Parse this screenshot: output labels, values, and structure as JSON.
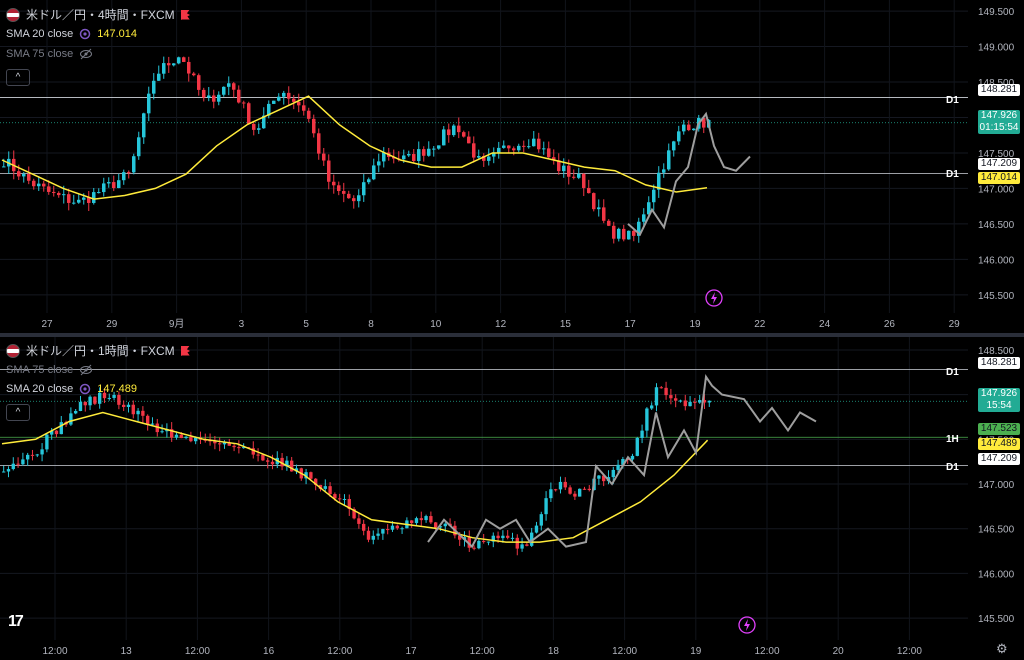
{
  "top_pane": {
    "symbol": "米ドル／円・4時間・FXCM",
    "indicators": [
      {
        "label": "SMA 20 close",
        "value": "147.014",
        "icon": "source-link-icon",
        "color": "#7e57c2"
      },
      {
        "label": "SMA 75 close",
        "value": "",
        "icon": "eye-hidden-icon",
        "color": "#787b86"
      }
    ],
    "collapse_label": "^",
    "y_axis": {
      "ticks": [
        "149.500",
        "149.000",
        "148.500",
        "148.000",
        "147.500",
        "147.000",
        "146.500",
        "146.000",
        "145.500"
      ],
      "range": [
        145.3,
        149.6
      ]
    },
    "x_axis": {
      "ticks": [
        "27",
        "29",
        "9月",
        "3",
        "5",
        "8",
        "10",
        "12",
        "15",
        "17",
        "19",
        "22",
        "24",
        "26",
        "29"
      ]
    },
    "price_tags": [
      {
        "text": "148.281",
        "bg": "#ffffff",
        "fg": "#131722"
      },
      {
        "text": "147.926",
        "sub": "01:15:54",
        "bg": "#22ab94",
        "fg": "#ffffff"
      },
      {
        "text": "147.209",
        "bg": "#ffffff",
        "fg": "#131722"
      },
      {
        "text": "147.014",
        "bg": "#ffeb3b",
        "fg": "#131722"
      }
    ],
    "line_badges": [
      "D1",
      "D1"
    ],
    "levels": [
      148.281,
      147.209
    ],
    "current_price": 147.926
  },
  "bottom_pane": {
    "symbol": "米ドル／円・1時間・FXCM",
    "indicators": [
      {
        "label": "SMA 75 close",
        "value": "",
        "icon": "eye-hidden-icon",
        "color": "#787b86"
      },
      {
        "label": "SMA 20 close",
        "value": "147.489",
        "icon": "source-link-icon",
        "color": "#7e57c2"
      }
    ],
    "collapse_label": "^",
    "y_axis": {
      "ticks": [
        "148.500",
        "148.000",
        "147.500",
        "147.000",
        "146.500",
        "146.000",
        "145.500"
      ],
      "range": [
        145.3,
        148.6
      ]
    },
    "x_axis": {
      "ticks": [
        "12:00",
        "13",
        "12:00",
        "16",
        "12:00",
        "17",
        "12:00",
        "18",
        "12:00",
        "19",
        "12:00",
        "20",
        "12:00"
      ]
    },
    "price_tags": [
      {
        "text": "148.281",
        "bg": "#ffffff",
        "fg": "#131722"
      },
      {
        "text": "147.926",
        "sub": "15:54",
        "bg": "#22ab94",
        "fg": "#ffffff"
      },
      {
        "text": "147.523",
        "bg": "#4caf50",
        "fg": "#131722"
      },
      {
        "text": "147.489",
        "bg": "#ffeb3b",
        "fg": "#131722"
      },
      {
        "text": "147.209",
        "bg": "#ffffff",
        "fg": "#131722"
      }
    ],
    "line_badges": [
      "D1",
      "1H",
      "D1"
    ],
    "levels": [
      148.281,
      147.523,
      147.209
    ],
    "current_price": 147.926
  },
  "brand": {
    "logo": "17"
  },
  "colors": {
    "up": "#26c6da",
    "down": "#f23645",
    "sma": "#ffeb3b",
    "projection": "#9e9e9e",
    "grid": "#1e222d"
  },
  "icons": [
    "flash-icon",
    "settings-gear-icon"
  ],
  "chart_data": [
    {
      "type": "candlestick",
      "title": "米ドル／円・4時間・FXCM",
      "ylim": [
        145.3,
        149.6
      ],
      "series": [
        {
          "name": "SMA 20 close",
          "close_approx": [
            147.4,
            147.2,
            147.0,
            146.85,
            146.9,
            147.0,
            147.2,
            147.6,
            147.9,
            148.1,
            148.3,
            147.9,
            147.6,
            147.4,
            147.3,
            147.3,
            147.5,
            147.5,
            147.4,
            147.3,
            147.25,
            147.05,
            146.95,
            147.01
          ]
        }
      ]
    },
    {
      "type": "candlestick",
      "title": "米ドル／円・1時間・FXCM",
      "ylim": [
        145.3,
        148.6
      ],
      "series": [
        {
          "name": "SMA 20 close",
          "close_approx": [
            147.45,
            147.5,
            147.7,
            147.8,
            147.7,
            147.6,
            147.5,
            147.45,
            147.3,
            147.1,
            146.8,
            146.6,
            146.55,
            146.5,
            146.4,
            146.35,
            146.35,
            146.4,
            146.6,
            146.8,
            147.1,
            147.49
          ]
        }
      ]
    }
  ]
}
